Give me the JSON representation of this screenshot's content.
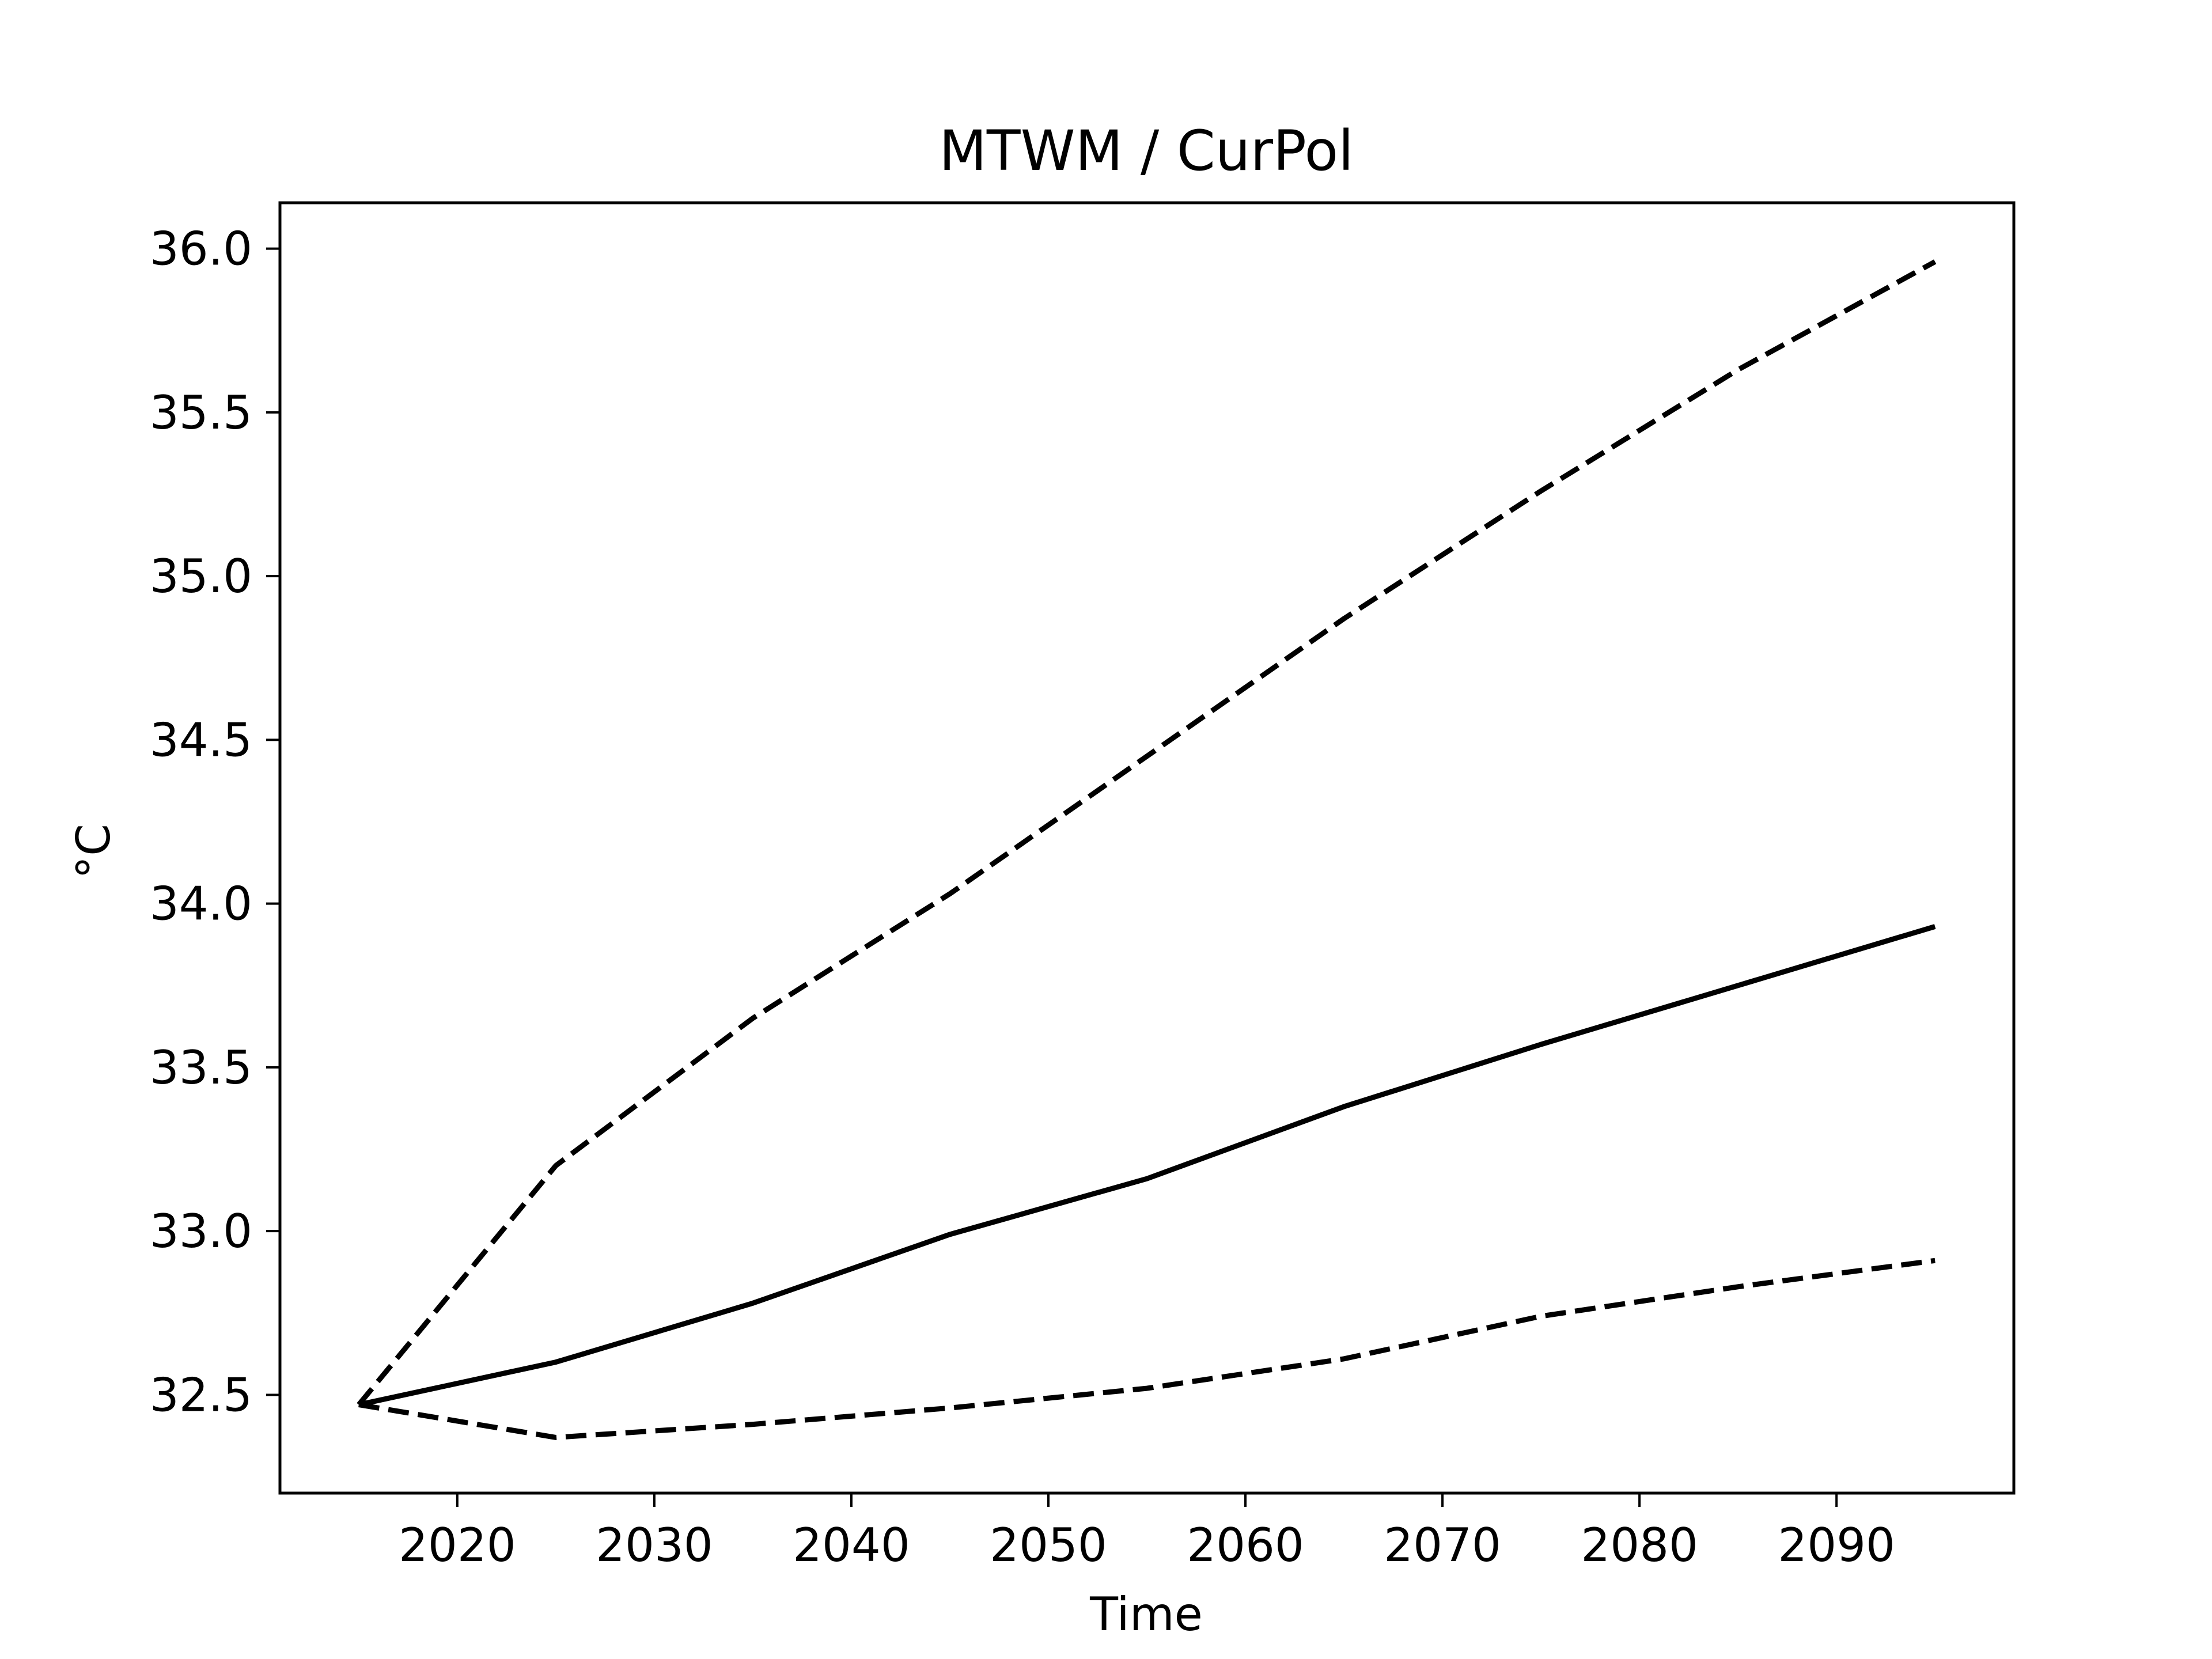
{
  "chart_data": {
    "type": "line",
    "title": "MTWM / CurPol",
    "xlabel": "Time",
    "ylabel": "°C",
    "xlim": [
      2011,
      2099
    ],
    "ylim": [
      32.2,
      36.14
    ],
    "xticks": [
      2020,
      2030,
      2040,
      2050,
      2060,
      2070,
      2080,
      2090
    ],
    "yticks": [
      32.5,
      33.0,
      33.5,
      34.0,
      34.5,
      35.0,
      35.5,
      36.0
    ],
    "xtick_labels": [
      "2020",
      "2030",
      "2040",
      "2050",
      "2060",
      "2070",
      "2080",
      "2090"
    ],
    "ytick_labels": [
      "32.5",
      "33.0",
      "33.5",
      "34.0",
      "34.5",
      "35.0",
      "35.5",
      "36.0"
    ],
    "grid": false,
    "line_color": "#000000",
    "series": [
      {
        "style": "solid",
        "x": [
          2015,
          2025,
          2035,
          2045,
          2055,
          2065,
          2075,
          2085,
          2095
        ],
        "y": [
          32.47,
          32.6,
          32.78,
          32.99,
          33.16,
          33.38,
          33.57,
          33.75,
          33.93
        ]
      },
      {
        "style": "dashed",
        "x": [
          2015,
          2025,
          2035,
          2045,
          2055,
          2065,
          2075,
          2085,
          2095
        ],
        "y": [
          32.47,
          33.2,
          33.65,
          34.03,
          34.45,
          34.87,
          35.26,
          35.63,
          35.96
        ]
      },
      {
        "style": "dashed",
        "x": [
          2015,
          2025,
          2035,
          2045,
          2055,
          2065,
          2075,
          2085,
          2095
        ],
        "y": [
          32.47,
          32.37,
          32.41,
          32.46,
          32.52,
          32.61,
          32.74,
          32.83,
          32.91
        ]
      }
    ]
  }
}
